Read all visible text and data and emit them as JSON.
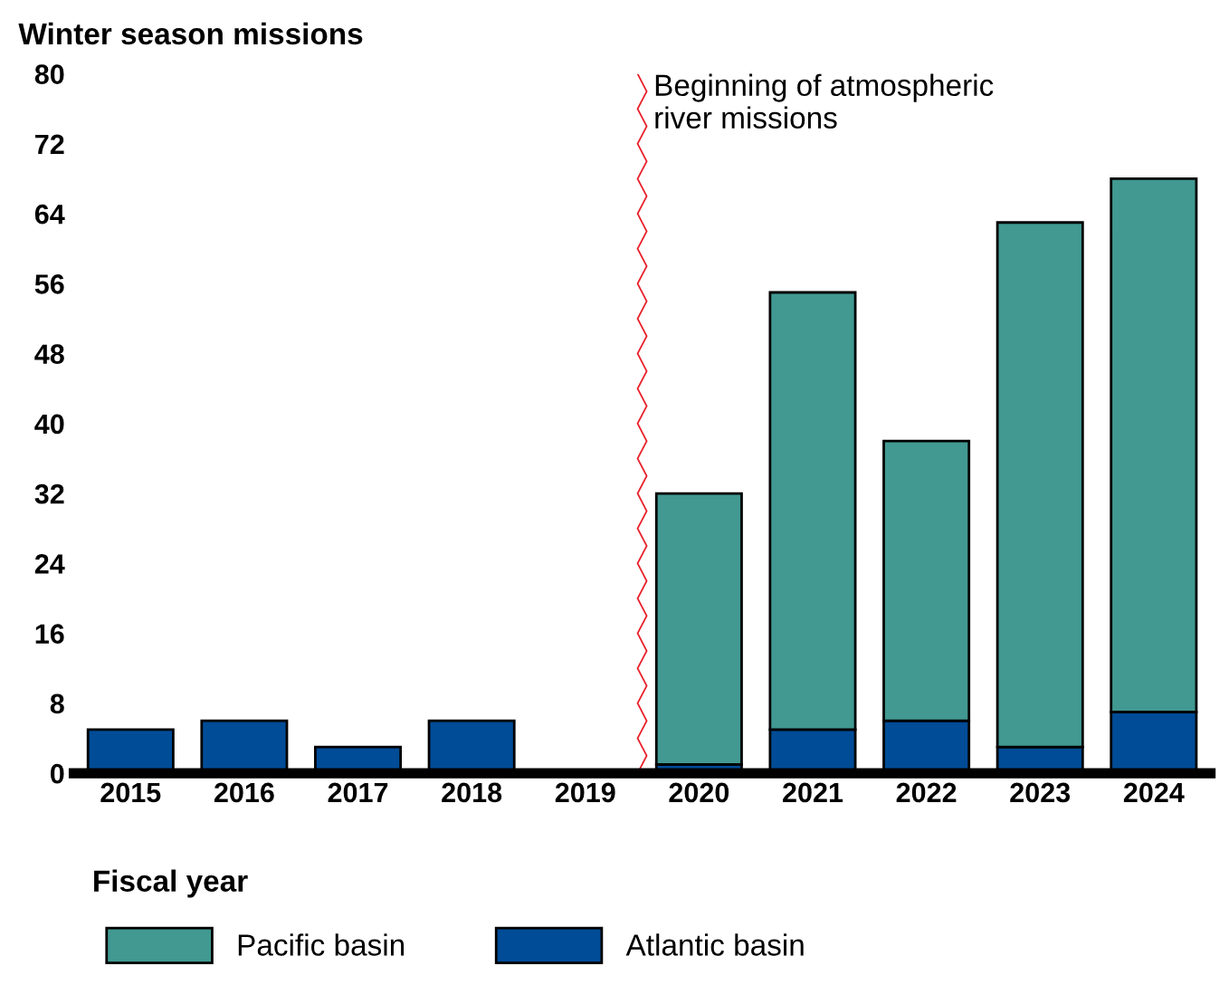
{
  "chart_data": {
    "type": "bar",
    "stacked": true,
    "ylabel": "Winter season missions",
    "xlabel": "Fiscal year",
    "categories": [
      "2015",
      "2016",
      "2017",
      "2018",
      "2019",
      "2020",
      "2021",
      "2022",
      "2023",
      "2024"
    ],
    "series": [
      {
        "name": "Atlantic basin",
        "color": "#004c97",
        "values": [
          5,
          6,
          3,
          6,
          null,
          1,
          5,
          6,
          3,
          7
        ]
      },
      {
        "name": "Pacific basin",
        "color": "#419991",
        "values": [
          null,
          null,
          null,
          null,
          null,
          31,
          50,
          32,
          60,
          61
        ]
      }
    ],
    "ylim": [
      0,
      80
    ],
    "yticks": [
      0,
      8,
      16,
      24,
      32,
      40,
      48,
      56,
      64,
      72,
      80
    ],
    "grid": false,
    "legend": "bottom",
    "annotations": [
      "Beginning of atmospheric\nriver missions"
    ]
  }
}
